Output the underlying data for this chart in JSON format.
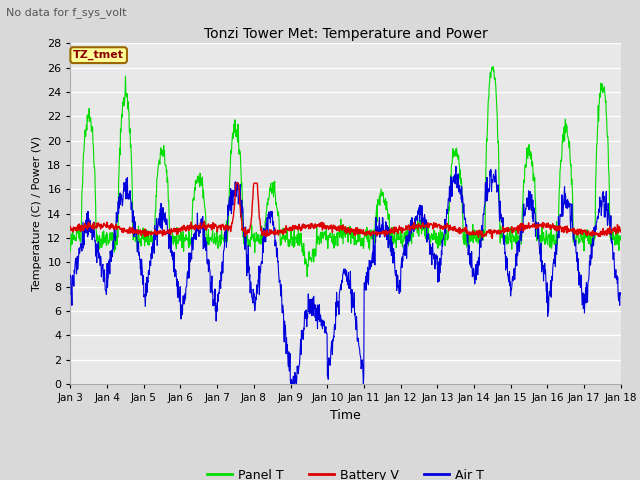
{
  "title": "Tonzi Tower Met: Temperature and Power",
  "subtitle": "No data for f_sys_volt",
  "xlabel": "Time",
  "ylabel": "Temperature (C) / Power (V)",
  "ylim": [
    0,
    28
  ],
  "yticks": [
    0,
    2,
    4,
    6,
    8,
    10,
    12,
    14,
    16,
    18,
    20,
    22,
    24,
    26,
    28
  ],
  "xtick_labels": [
    "Jan 3",
    "Jan 4",
    "Jan 5",
    "Jan 6",
    "Jan 7",
    "Jan 8",
    "Jan 9",
    "Jan 10",
    "Jan 11",
    "Jan 12",
    "Jan 13",
    "Jan 14",
    "Jan 15",
    "Jan 16",
    "Jan 17",
    "Jan 18"
  ],
  "panel_t_color": "#00dd00",
  "battery_v_color": "#dd0000",
  "air_t_color": "#0000dd",
  "bg_color": "#d9d9d9",
  "plot_bg_color": "#e8e8e8",
  "grid_color": "#ffffff",
  "legend_label": "TZ_tmet",
  "legend_bg": "#ffff99",
  "legend_border": "#996600",
  "legend_text_color": "#880000"
}
